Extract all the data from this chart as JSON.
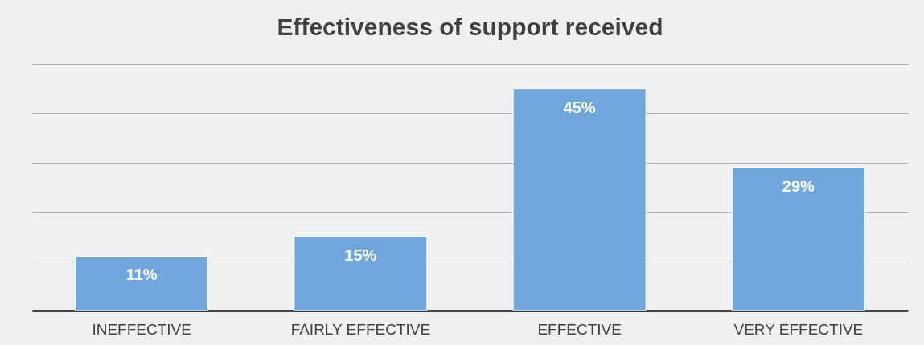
{
  "chart_data": {
    "type": "bar",
    "title": "Effectiveness of support received",
    "categories": [
      "INEFFECTIVE",
      "FAIRLY EFFECTIVE",
      "EFFECTIVE",
      "VERY EFFECTIVE"
    ],
    "values": [
      11,
      15,
      45,
      29
    ],
    "value_labels": [
      "11%",
      "15%",
      "45%",
      "29%"
    ],
    "color": "#6fa6dc",
    "ylim": [
      0,
      50
    ],
    "yticks": [
      {
        "value": 0,
        "label": null
      },
      {
        "value": 10,
        "label": null
      },
      {
        "value": 20,
        "label": null
      },
      {
        "value": 30,
        "label": null
      },
      {
        "value": 40,
        "label": null
      },
      {
        "value": 50,
        "label": null
      }
    ],
    "grid": "y",
    "tick_labels": "x"
  }
}
